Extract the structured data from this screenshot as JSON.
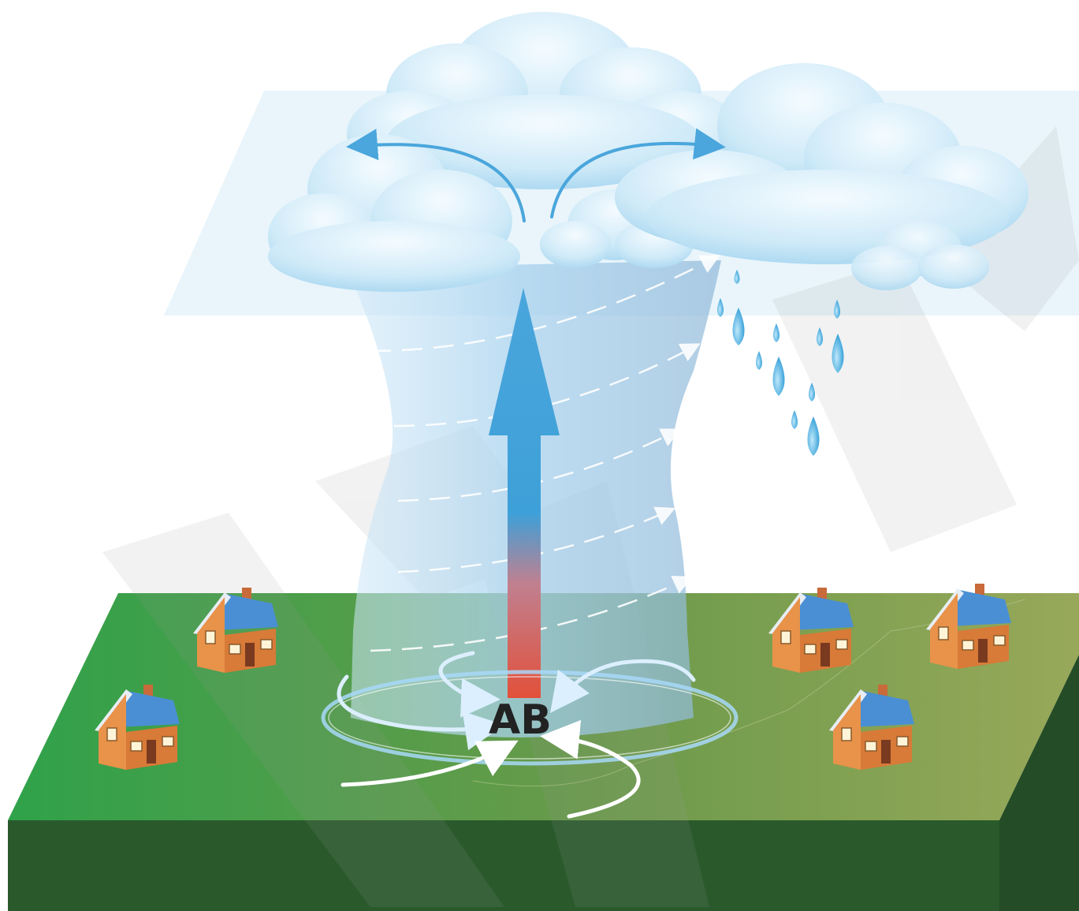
{
  "diagram": {
    "center_label": "AB"
  },
  "colors": {
    "ground_top_left": "#2fa24a",
    "ground_top_right": "#98a85a",
    "ground_side": "#2a5a2c",
    "cloud_light": "#e8f6fc",
    "cloud_mid": "#b8e0f4",
    "column": "#a8d2ee",
    "arrow_blue": "#4aa6dc",
    "arrow_warm": "#e2503a",
    "rain": "#2d9fd8",
    "house_wall": "#e8924a",
    "house_roof": "#4a8fd4",
    "watermark": "#9a9a9a"
  }
}
